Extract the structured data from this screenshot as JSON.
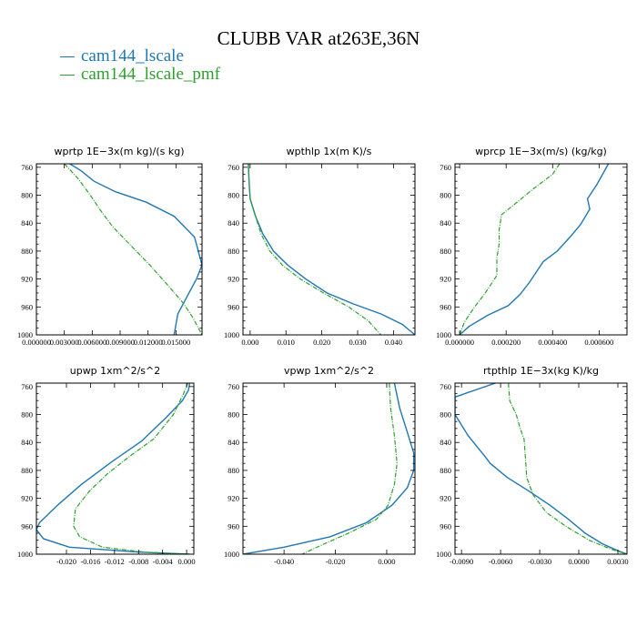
{
  "title": "CLUBB VAR at263E,36N",
  "legend": [
    {
      "name": "cam144_lscale",
      "color": "#1f77b4"
    },
    {
      "name": "cam144_lscale_pmf",
      "color": "#2ca02c"
    }
  ],
  "colors": {
    "series1": "#1f77b4",
    "series2": "#2ca02c",
    "axes": "#000000"
  },
  "chart_data": [
    {
      "type": "line",
      "title": "wprtp  1E−3x(m kg)/(s kg)",
      "xlim": [
        0.0,
        0.0178
      ],
      "ylim": [
        1000,
        755
      ],
      "yticks": [
        760,
        800,
        840,
        880,
        920,
        960,
        1000
      ],
      "xticks": [
        0.0,
        0.003,
        0.006,
        0.009,
        0.012,
        0.015
      ],
      "xtick_labels": [
        "0.000000",
        "0.003000",
        "0.006000",
        "0.009000",
        "0.012000",
        "0.015000"
      ],
      "series": [
        {
          "name": "cam144_lscale",
          "x": [
            0.0036,
            0.0048,
            0.0062,
            0.0085,
            0.0118,
            0.0148,
            0.017,
            0.0178,
            0.0172,
            0.0162,
            0.0152,
            0.0148
          ],
          "y": [
            755,
            765,
            780,
            795,
            810,
            830,
            860,
            900,
            920,
            945,
            970,
            1000
          ]
        },
        {
          "name": "cam144_lscale_pmf",
          "x": [
            0.003,
            0.0044,
            0.0058,
            0.0068,
            0.0082,
            0.01,
            0.0122,
            0.0142,
            0.0158,
            0.0168,
            0.0178
          ],
          "y": [
            755,
            775,
            800,
            820,
            845,
            870,
            900,
            930,
            955,
            975,
            1000
          ]
        }
      ]
    },
    {
      "type": "line",
      "title": "wpthlp  1x(m K)/s",
      "xlim": [
        -0.002,
        0.046
      ],
      "ylim": [
        1000,
        755
      ],
      "yticks": [
        760,
        800,
        840,
        880,
        920,
        960,
        1000
      ],
      "xticks": [
        0.0,
        0.01,
        0.02,
        0.03,
        0.04
      ],
      "xtick_labels": [
        "0.000",
        "0.010",
        "0.020",
        "0.030",
        "0.040"
      ],
      "series": [
        {
          "name": "cam144_lscale",
          "x": [
            -0.0005,
            -0.0003,
            0.0,
            0.0015,
            0.0035,
            0.0065,
            0.0105,
            0.0155,
            0.0215,
            0.0285,
            0.0365,
            0.0425,
            0.046
          ],
          "y": [
            755,
            780,
            805,
            830,
            855,
            880,
            900,
            920,
            940,
            955,
            970,
            985,
            1000
          ]
        },
        {
          "name": "cam144_lscale_pmf",
          "x": [
            -0.0005,
            -0.0003,
            0.0,
            0.0015,
            0.003,
            0.0055,
            0.009,
            0.014,
            0.0205,
            0.0275,
            0.033,
            0.0365
          ],
          "y": [
            755,
            780,
            805,
            830,
            855,
            880,
            900,
            920,
            940,
            960,
            980,
            1000
          ]
        }
      ]
    },
    {
      "type": "line",
      "title": "wprcp  1E−3x(m/s) (kg/kg)",
      "xlim": [
        -2e-05,
        0.00072
      ],
      "ylim": [
        1000,
        755
      ],
      "yticks": [
        760,
        800,
        840,
        880,
        920,
        960,
        1000
      ],
      "xticks": [
        0.0,
        0.0002,
        0.0004,
        0.0006
      ],
      "xtick_labels": [
        "0.000000",
        "0.000200",
        "0.000400",
        "0.000600"
      ],
      "series": [
        {
          "name": "cam144_lscale",
          "x": [
            0.00064,
            0.00059,
            0.00055,
            0.00056,
            0.00052,
            0.00048,
            0.00042,
            0.00036,
            0.00033,
            0.0003,
            0.00026,
            0.00021,
            0.00012,
            4e-05,
            0.0
          ],
          "y": [
            755,
            785,
            805,
            820,
            842,
            858,
            880,
            895,
            910,
            925,
            942,
            958,
            972,
            988,
            1000
          ]
        },
        {
          "name": "cam144_lscale_pmf",
          "x": [
            0.00043,
            0.0004,
            0.00036,
            0.00032,
            0.00024,
            0.00018,
            0.00017,
            0.00017,
            0.00016,
            0.00016,
            0.00011,
            6e-05,
            2e-05,
            0.0
          ],
          "y": [
            755,
            770,
            780,
            790,
            812,
            828,
            850,
            870,
            890,
            915,
            940,
            962,
            982,
            1000
          ]
        }
      ]
    },
    {
      "type": "line",
      "title": "upwp  1xm^2/s^2",
      "xlim": [
        -0.025,
        0.0012
      ],
      "ylim": [
        1000,
        755
      ],
      "yticks": [
        760,
        800,
        840,
        880,
        920,
        960,
        1000
      ],
      "xticks": [
        -0.02,
        -0.016,
        -0.012,
        -0.008,
        -0.004,
        0.0
      ],
      "xtick_labels": [
        "-0.020",
        "-0.016",
        "-0.012",
        "-0.008",
        "-0.004",
        "0.000"
      ],
      "series": [
        {
          "name": "cam144_lscale",
          "x": [
            0.0005,
            0.0003,
            -0.0007,
            -0.0035,
            -0.0075,
            -0.0125,
            -0.0175,
            -0.0215,
            -0.0245,
            -0.025,
            -0.0238,
            -0.0195,
            -0.008,
            0.0005
          ],
          "y": [
            755,
            765,
            780,
            805,
            838,
            868,
            900,
            930,
            955,
            965,
            978,
            990,
            997,
            1000
          ]
        },
        {
          "name": "cam144_lscale_pmf",
          "x": [
            0.0002,
            -0.0005,
            -0.0022,
            -0.0055,
            -0.0095,
            -0.0132,
            -0.0162,
            -0.0185,
            -0.0188,
            -0.0178,
            -0.014,
            -0.007,
            0.0
          ],
          "y": [
            755,
            770,
            800,
            835,
            860,
            885,
            910,
            935,
            960,
            975,
            990,
            997,
            1000
          ]
        }
      ]
    },
    {
      "type": "line",
      "title": "vpwp  1xm^2/s^2",
      "xlim": [
        -0.056,
        0.011
      ],
      "ylim": [
        1000,
        755
      ],
      "yticks": [
        760,
        800,
        840,
        880,
        920,
        960,
        1000
      ],
      "xticks": [
        -0.04,
        -0.02,
        0.0
      ],
      "xtick_labels": [
        "-0.040",
        "-0.020",
        "0.000"
      ],
      "series": [
        {
          "name": "cam144_lscale",
          "x": [
            0.003,
            0.005,
            0.008,
            0.0105,
            0.0105,
            0.008,
            0.002,
            -0.008,
            -0.022,
            -0.04,
            -0.056
          ],
          "y": [
            755,
            790,
            825,
            855,
            880,
            905,
            930,
            955,
            975,
            990,
            1000
          ]
        },
        {
          "name": "cam144_lscale_pmf",
          "x": [
            0.001,
            0.0015,
            0.003,
            0.004,
            0.003,
            0.0005,
            -0.004,
            -0.015,
            -0.026,
            -0.033
          ],
          "y": [
            755,
            790,
            830,
            870,
            900,
            930,
            950,
            970,
            988,
            1000
          ]
        }
      ]
    },
    {
      "type": "line",
      "title": "rtpthlp  1E−3x(kg K)/kg",
      "xlim": [
        -0.0095,
        0.0037
      ],
      "ylim": [
        1000,
        755
      ],
      "yticks": [
        760,
        800,
        840,
        880,
        920,
        960,
        1000
      ],
      "xticks": [
        -0.009,
        -0.006,
        -0.003,
        0.0,
        0.003
      ],
      "xtick_labels": [
        "-0.0090",
        "-0.0060",
        "-0.0030",
        "0.0000",
        "0.0030"
      ],
      "series": [
        {
          "name": "cam144_lscale",
          "x": [
            -0.0064,
            -0.0095,
            -0.0095,
            -0.0085,
            -0.0072,
            -0.0068,
            -0.0055,
            -0.0038,
            -0.0022,
            -0.0008,
            0.0005,
            0.0018,
            0.003,
            0.0037
          ],
          "y": [
            755,
            775,
            800,
            830,
            860,
            870,
            890,
            910,
            930,
            950,
            970,
            985,
            995,
            1000
          ]
        },
        {
          "name": "cam144_lscale_pmf",
          "x": [
            -0.0054,
            -0.0053,
            -0.0048,
            -0.0045,
            -0.0042,
            -0.0041,
            -0.004,
            -0.0035,
            -0.0025,
            -0.001,
            0.0008,
            0.0025,
            0.0037
          ],
          "y": [
            755,
            780,
            800,
            820,
            835,
            860,
            890,
            915,
            940,
            960,
            980,
            993,
            1000
          ]
        }
      ]
    }
  ]
}
